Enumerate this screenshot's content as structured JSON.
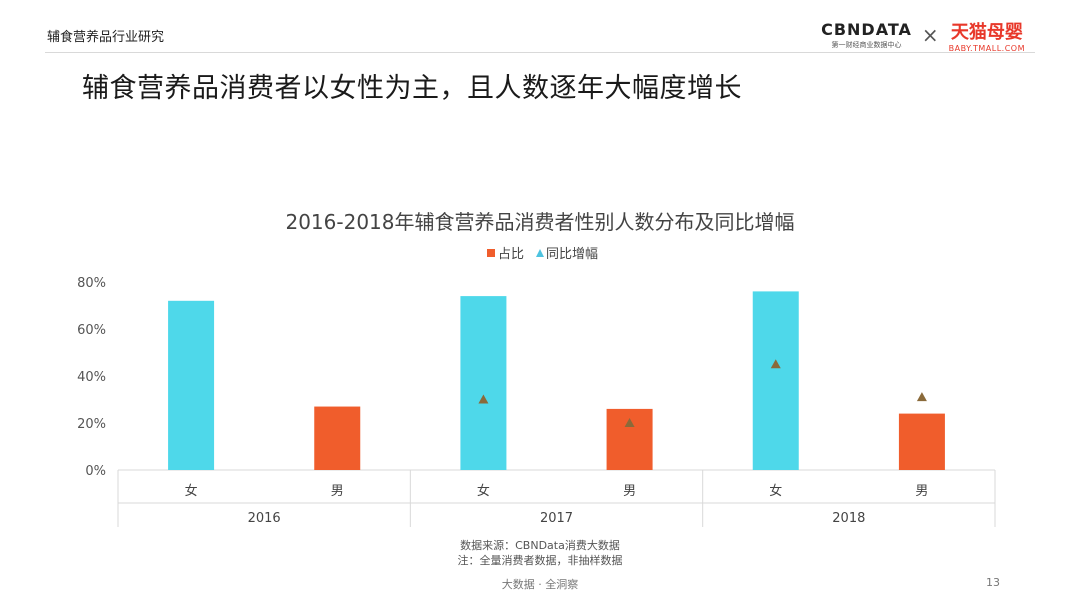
{
  "header": {
    "section_label": "辅食营养品行业研究",
    "page_title": "辅食营养品消费者以女性为主，且人数逐年大幅度增长",
    "brand_cbn_logo": "CBNDATA",
    "brand_cbn_sub": "第一财经商业数据中心",
    "brand_times": "×",
    "brand_tmall_logo": "天猫母婴",
    "brand_tmall_sub": "BABY.TMALL.COM"
  },
  "chart_data": {
    "type": "bar",
    "title": "2016-2018年辅食营养品消费者性别人数分布及同比增幅",
    "legend": {
      "position": "top",
      "items": [
        "占比",
        "同比增幅"
      ]
    },
    "y_ticks": [
      "0%",
      "20%",
      "40%",
      "60%",
      "80%"
    ],
    "ylim": [
      0,
      80
    ],
    "groups": [
      "2016",
      "2017",
      "2018"
    ],
    "categories": [
      "女",
      "男"
    ],
    "bars": [
      {
        "group": "2016",
        "category": "女",
        "value": 72,
        "color": "#4ed8ea"
      },
      {
        "group": "2016",
        "category": "男",
        "value": 27,
        "color": "#f05d2c"
      },
      {
        "group": "2017",
        "category": "女",
        "value": 74,
        "color": "#4ed8ea"
      },
      {
        "group": "2017",
        "category": "男",
        "value": 26,
        "color": "#f05d2c"
      },
      {
        "group": "2018",
        "category": "女",
        "value": 76,
        "color": "#4ed8ea"
      },
      {
        "group": "2018",
        "category": "男",
        "value": 24,
        "color": "#f05d2c"
      }
    ],
    "markers": [
      {
        "group": "2017",
        "category": "女",
        "value": 30
      },
      {
        "group": "2017",
        "category": "男",
        "value": 20
      },
      {
        "group": "2018",
        "category": "女",
        "value": 45
      },
      {
        "group": "2018",
        "category": "男",
        "value": 31
      }
    ],
    "colors": {
      "share": "#f05d2c",
      "growth_legend": "#4ec3e0",
      "marker": "#8a6a3a",
      "grid": "#d9d9d9"
    }
  },
  "footer": {
    "source": "数据来源：CBNData消费大数据",
    "note": "注：全量消费者数据，非抽样数据",
    "center": "大数据 · 全洞察",
    "page": "13"
  }
}
